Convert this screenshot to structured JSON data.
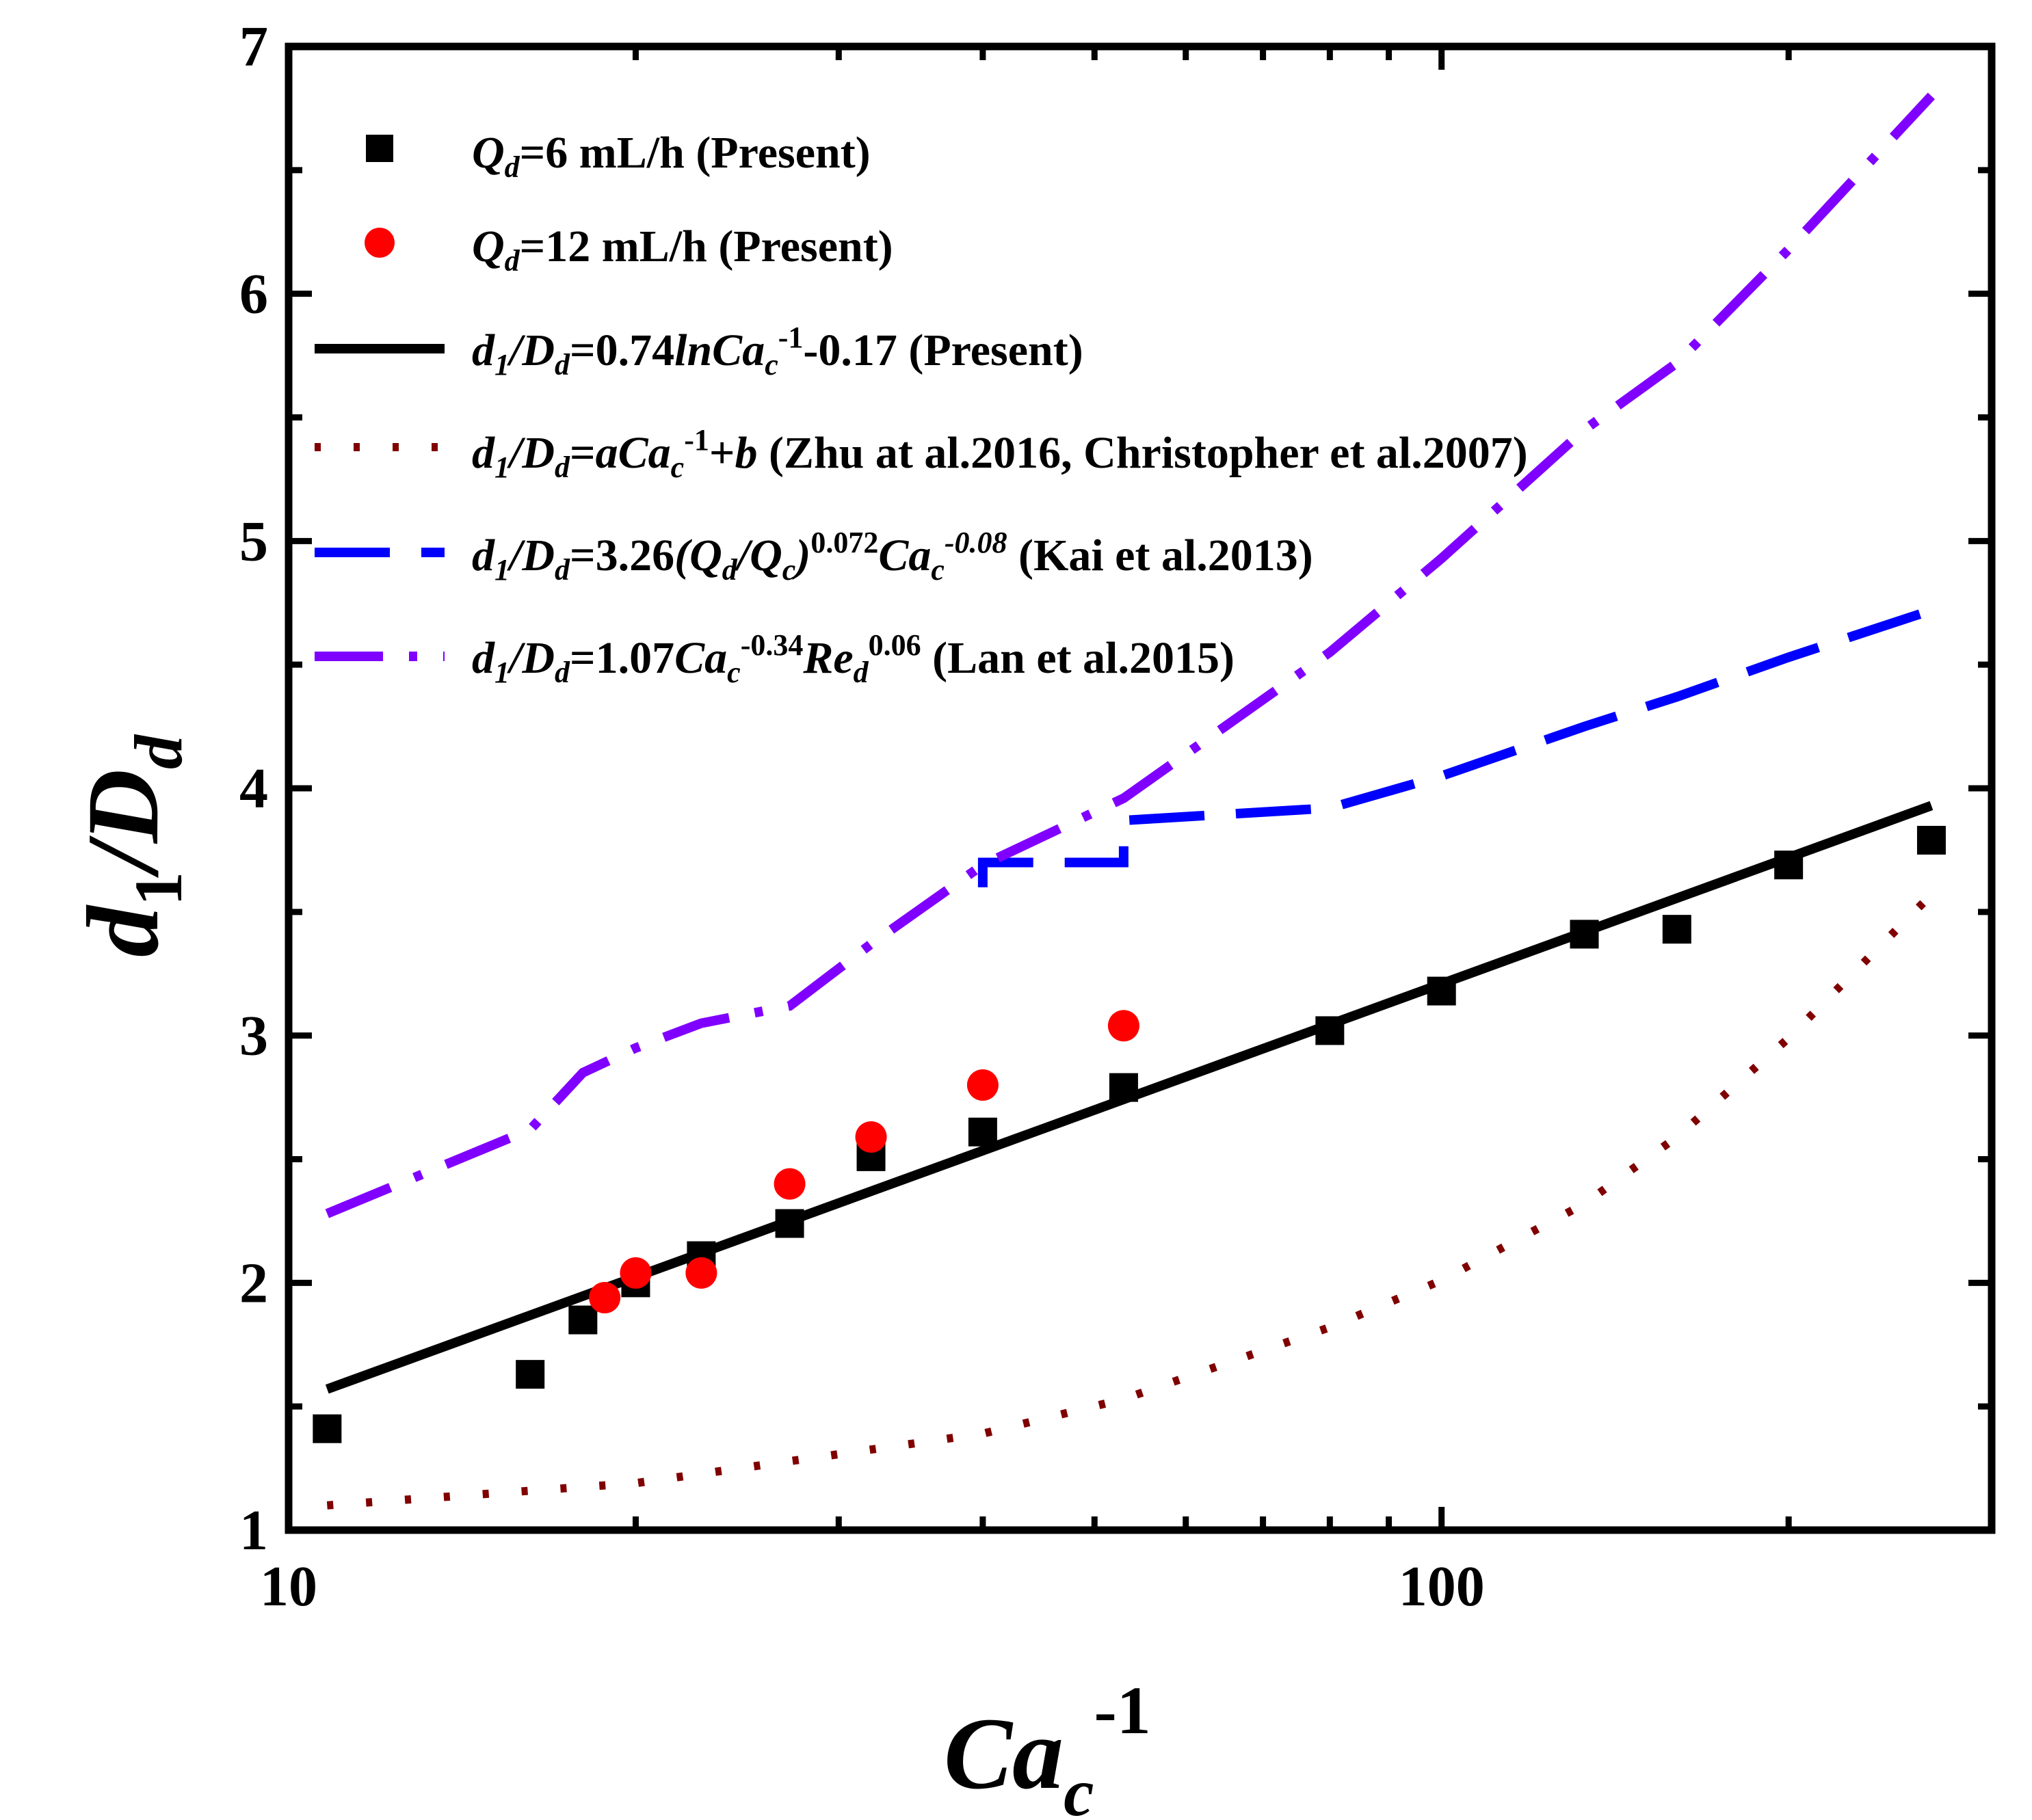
{
  "chart_data": {
    "type": "scatter",
    "xscale": "log",
    "xlim": [
      10,
      300
    ],
    "ylim": [
      1,
      7
    ],
    "x_ticks": [
      10,
      100
    ],
    "x_tick_labels": [
      "10",
      "100"
    ],
    "y_ticks": [
      1,
      2,
      3,
      4,
      5,
      6,
      7
    ],
    "y_tick_labels": [
      "1",
      "2",
      "3",
      "4",
      "5",
      "6",
      "7"
    ],
    "xlabel": "Ca_c^-1",
    "ylabel": "d_1/D_d",
    "legend_position": "top-left",
    "series": [
      {
        "name": "Q_d=6 mL/h (Present)",
        "kind": "markers-square",
        "color": "#000000",
        "x": [
          10.8,
          16.2,
          18.0,
          20.0,
          22.8,
          27.2,
          32.0,
          40.0,
          53.0,
          80.0,
          100.0,
          133.0,
          160.0,
          200.0,
          266.0
        ],
        "y": [
          1.41,
          1.63,
          1.85,
          2.0,
          2.11,
          2.24,
          2.51,
          2.61,
          2.79,
          3.02,
          3.18,
          3.41,
          3.43,
          3.69,
          3.79
        ]
      },
      {
        "name": "Q_d=12 mL/h (Present)",
        "kind": "markers-circle",
        "color": "#ff0000",
        "x": [
          18.8,
          20.0,
          22.8,
          27.2,
          32.0,
          40.0,
          53.0
        ],
        "y": [
          1.94,
          2.04,
          2.04,
          2.4,
          2.59,
          2.8,
          3.04
        ]
      },
      {
        "name": "d1/Dd=0.74lnCac-1-0.17 (Present)",
        "kind": "line-solid",
        "color": "#000000",
        "x": [
          10.8,
          266.0
        ],
        "y": [
          1.57,
          3.93
        ]
      },
      {
        "name": "d1/Dd=aCac-1+b (Zhu at al.2016, Christopher et al.2007)",
        "kind": "line-dotted",
        "color": "#800000",
        "x": [
          10.8,
          20.0,
          40.0,
          53.0,
          80.0,
          100.0,
          133.0,
          160.0,
          200.0,
          266.0
        ],
        "y": [
          1.1,
          1.19,
          1.39,
          1.53,
          1.82,
          2.01,
          2.32,
          2.59,
          2.99,
          3.57
        ]
      },
      {
        "name": "d1/Dd=3.26(Qd/Qc)^0.072 Cac^-0.08 (Kai et al.2013)",
        "kind": "line-dashed",
        "color": "#0000ff",
        "x": [
          40.0,
          40.0,
          53.0,
          53.0,
          80.0,
          100.0,
          133.0,
          160.0,
          200.0,
          266.0
        ],
        "y": [
          3.6,
          3.7,
          3.7,
          3.87,
          3.92,
          4.05,
          4.25,
          4.37,
          4.53,
          4.72
        ]
      },
      {
        "name": "d1/Dd=1.07Cac^-0.34 Red^0.06 (Lan et al.2015)",
        "kind": "line-dashdot",
        "color": "#8000ff",
        "x": [
          10.8,
          16.2,
          18.0,
          20.0,
          22.8,
          27.2,
          32.0,
          40.0,
          53.0,
          80.0,
          100.0,
          133.0,
          160.0,
          200.0,
          266.0
        ],
        "y": [
          2.28,
          2.62,
          2.85,
          2.95,
          3.05,
          3.12,
          3.37,
          3.69,
          3.96,
          4.55,
          4.93,
          5.45,
          5.72,
          6.18,
          6.8
        ]
      }
    ]
  },
  "legend": {
    "entries": [
      {
        "q": "Q",
        "d": "d",
        "rest": "=6 mL/h (Present)"
      },
      {
        "q": "Q",
        "d": "d",
        "rest": "=12 mL/h (Present)"
      },
      {
        "pre": "d",
        "sub1": "1",
        "slash": "/",
        "D": "D",
        "subd": "d",
        "eq": "=0.74",
        "ln": "lnCa",
        "subc": "c",
        "sup": "-1",
        "rest": "-0.17 (Present)"
      },
      {
        "pre": "d",
        "sub1": "1",
        "slash": "/",
        "D": "D",
        "subd": "d",
        "eq": "=",
        "a": "aCa",
        "subc": "c",
        "sup": "-1",
        "plus": "+",
        "b": "b",
        "rest": " (Zhu at al.2016, Christopher et al.2007)"
      },
      {
        "pre": "d",
        "sub1": "1",
        "slash": "/",
        "D": "D",
        "subd": "d",
        "eq": "=3.26",
        "p1": "(",
        "Q1": "Q",
        "Q1s": "d",
        "sl2": "/",
        "Q2": "Q",
        "Q2s": "c",
        "p2": ")",
        "sup1": "0.072",
        "ca": "Ca",
        "subc": "c",
        "sup2": "-0.08",
        "rest": " (Kai et al.2013)"
      },
      {
        "pre": "d",
        "sub1": "1",
        "slash": "/",
        "D": "D",
        "subd": "d",
        "eq": "=1.07",
        "ca": "Ca",
        "subc": "c",
        "sup1": "-0.34",
        "re": "Re",
        "subd2": "d",
        "sup2": "0.06",
        "rest": " (Lan et al.2015)"
      }
    ]
  },
  "axes": {
    "xlabel_main": "Ca",
    "xlabel_sub": "c",
    "xlabel_sup": "-1",
    "ylabel_main": "d",
    "ylabel_sub": "1",
    "ylabel_slash": "/D",
    "ylabel_sub2": "d"
  }
}
